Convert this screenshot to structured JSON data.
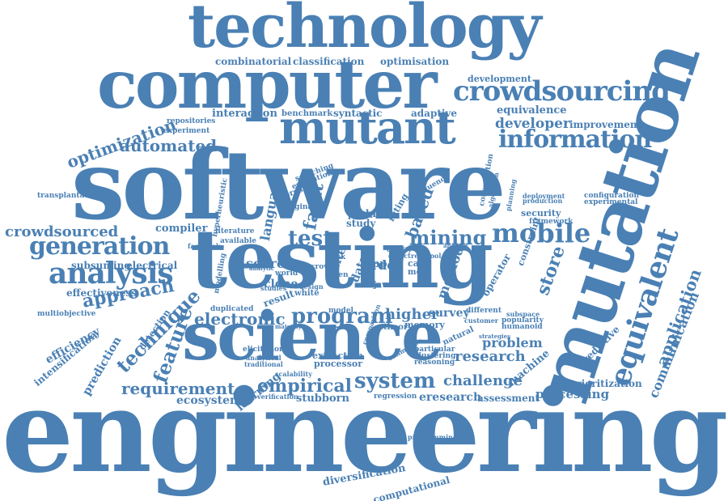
{
  "colors": {
    "text": "#4a80b4",
    "text_dark": "#3d6fa3",
    "background": "#ffffff"
  },
  "words": {
    "technology": "technology",
    "computer": "computer",
    "crowdsourcing": "crowdsourcing",
    "mutant": "mutant",
    "information": "information",
    "software": "software",
    "testing": "testing",
    "mutation": "mutation",
    "science": "science",
    "engineering": "engineering",
    "equivalent": "equivalent",
    "analysis": "analysis",
    "generation": "generation",
    "mobile": "mobile",
    "program": "program",
    "system": "system",
    "empirical": "empirical",
    "technique": "technique",
    "feature": "feature",
    "electronic": "electronic",
    "optimization": "optimization",
    "automated": "automated",
    "crowdsourced": "crowdsourced",
    "approach": "approach",
    "requirement": "requirement",
    "application": "application",
    "communication": "communication",
    "store": "store",
    "research": "research",
    "developer": "developer",
    "combinatorial": "combinatorial",
    "classification": "classification",
    "optimisation": "optimisation",
    "development": "development",
    "equivalence": "equivalence",
    "improvement": "improvement",
    "interaction": "interaction",
    "benchmark": "benchmark",
    "syntactic": "syntactic",
    "adaptive": "adaptive",
    "repositories": "repositories",
    "experiment": "experiment",
    "transplantation": "transplantation",
    "compiler": "compiler",
    "subsuming": "subsuming",
    "electrical": "electrical",
    "effectiveness": "effectiveness",
    "multiobjective": "multiobjective",
    "efficiency": "efficiency",
    "intensification": "intensification",
    "prediction": "prediction",
    "detection": "detection",
    "ecosystem": "ecosystem",
    "learning": "learning",
    "stubborn": "stubborn",
    "eresearch": "eresearch",
    "assessment": "assessment",
    "processing": "processing",
    "challenge": "challenge",
    "prioritization": "prioritization",
    "machine": "machine",
    "problem": "problem",
    "predictive": "predictive",
    "higher": "higher",
    "survey": "survey",
    "different": "different",
    "test": "test",
    "fault": "fault",
    "language": "language",
    "mining": "mining",
    "search": "search",
    "clone": "clone",
    "result": "result",
    "diversification": "diversification",
    "computational": "computational",
    "based": "based",
    "order": "order",
    "study": "study",
    "black": "black",
    "paper": "paper",
    "white": "white",
    "method": "method",
    "memory": "memory",
    "theory": "theory",
    "operator": "operator",
    "constraint": "constraint",
    "hyperheuristic": "hyperheuristic",
    "literature": "literature",
    "framework": "framework",
    "security": "security",
    "popularity": "popularity",
    "humanoid": "humanoid",
    "extraction": "extraction",
    "processor": "processor",
    "scalability": "scalability",
    "verification": "verification",
    "regression": "regression",
    "programming": "programming",
    "elicitation": "elicitation",
    "analytical": "analytical",
    "traditional": "traditional",
    "particular": "particular",
    "clustering": "clustering",
    "reasoning": "reasoning",
    "natural": "natural",
    "duplicated": "duplicated",
    "modelling": "modelling",
    "facebook": "facebook",
    "available": "available",
    "studies": "studies",
    "subspace": "subspace",
    "configuration": "configuration",
    "experimental": "experimental",
    "deployment": "deployment",
    "production": "production",
    "consumption": "consumption",
    "sequence": "sequence",
    "suite": "suite",
    "data": "data",
    "app": "app",
    "case": "case",
    "more": "more",
    "java": "java",
    "model": "model",
    "world": "world",
    "task": "task",
    "open": "open",
    "crowd": "crowd",
    "rating": "rating",
    "original": "original",
    "present": "present",
    "evaluation": "evaluation",
    "searching": "searching",
    "quality": "quality",
    "defect": "defect",
    "repair": "repair",
    "tool": "tool",
    "android": "android",
    "customer": "customer",
    "strategies": "strategies",
    "estimation": "estimation",
    "comparison": "comparison",
    "design": "design",
    "majority": "majority",
    "algorithm": "algorithm",
    "planning": "planning",
    "analytic": "analytic"
  }
}
